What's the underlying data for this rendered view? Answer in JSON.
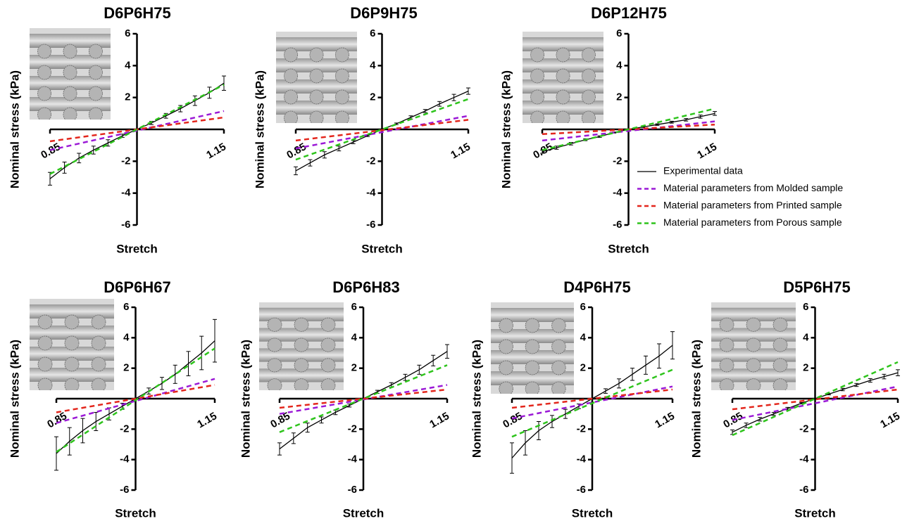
{
  "legend": [
    {
      "name": "Experimental data",
      "color": "#000000",
      "dashed": false
    },
    {
      "name": "Material parameters from Molded sample",
      "color": "#9b19d6",
      "dashed": true
    },
    {
      "name": "Material parameters from Printed sample",
      "color": "#e3261c",
      "dashed": true
    },
    {
      "name": "Material parameters from Porous sample",
      "color": "#2ec41c",
      "dashed": true
    }
  ],
  "chart_data": [
    {
      "type": "line",
      "title": "D6P6H75",
      "x_label": "Stretch",
      "y_label": "Nominal stress (kPa)",
      "xlim": [
        0.85,
        1.15
      ],
      "xticks": [
        0.85,
        1.15
      ],
      "ylim": [
        -6,
        6
      ],
      "yticks": [
        -6,
        -4,
        -2,
        2,
        4,
        6
      ],
      "series": [
        {
          "x": [
            0.85,
            0.875,
            0.9,
            0.925,
            0.95,
            0.975,
            1,
            1.025,
            1.05,
            1.075,
            1.1,
            1.125,
            1.15
          ],
          "values": [
            -3.1,
            -2.4,
            -1.8,
            -1.3,
            -0.85,
            -0.4,
            0,
            0.4,
            0.85,
            1.3,
            1.8,
            2.3,
            2.9
          ],
          "errors": [
            0.4,
            0.35,
            0.3,
            0.25,
            0.2,
            0.1,
            0,
            0.1,
            0.15,
            0.2,
            0.3,
            0.35,
            0.45
          ]
        },
        {
          "x": [
            0.85,
            1.15
          ],
          "values": [
            -1.3,
            1.15
          ]
        },
        {
          "x": [
            0.85,
            1.15
          ],
          "values": [
            -0.75,
            0.75
          ]
        },
        {
          "x": [
            0.85,
            1.15
          ],
          "values": [
            -2.8,
            2.8
          ]
        }
      ]
    },
    {
      "type": "line",
      "title": "D6P9H75",
      "x_label": "Stretch",
      "y_label": "Nominal stress (kPa)",
      "xlim": [
        0.85,
        1.15
      ],
      "xticks": [
        0.85,
        1.15
      ],
      "ylim": [
        -6,
        6
      ],
      "yticks": [
        -6,
        -4,
        -2,
        2,
        4,
        6
      ],
      "series": [
        {
          "x": [
            0.85,
            0.875,
            0.9,
            0.925,
            0.95,
            0.975,
            1,
            1.025,
            1.05,
            1.075,
            1.1,
            1.125,
            1.15
          ],
          "values": [
            -2.6,
            -2.1,
            -1.6,
            -1.2,
            -0.8,
            -0.4,
            0,
            0.35,
            0.75,
            1.15,
            1.6,
            2.0,
            2.4
          ],
          "errors": [
            0.25,
            0.2,
            0.2,
            0.15,
            0.1,
            0.05,
            0,
            0.05,
            0.1,
            0.1,
            0.15,
            0.2,
            0.2
          ]
        },
        {
          "x": [
            0.85,
            1.15
          ],
          "values": [
            -1.2,
            0.85
          ]
        },
        {
          "x": [
            0.85,
            1.15
          ],
          "values": [
            -0.7,
            0.6
          ]
        },
        {
          "x": [
            0.85,
            1.15
          ],
          "values": [
            -1.9,
            1.9
          ]
        }
      ]
    },
    {
      "type": "line",
      "title": "D6P12H75",
      "x_label": "Stretch",
      "y_label": "Nominal stress (kPa)",
      "xlim": [
        0.85,
        1.15
      ],
      "xticks": [
        0.85,
        1.15
      ],
      "ylim": [
        -6,
        6
      ],
      "yticks": [
        -6,
        -4,
        -2,
        2,
        4,
        6
      ],
      "series": [
        {
          "x": [
            0.85,
            0.875,
            0.9,
            0.925,
            0.95,
            0.975,
            1,
            1.025,
            1.05,
            1.075,
            1.1,
            1.125,
            1.15
          ],
          "values": [
            -1.4,
            -1.15,
            -0.9,
            -0.65,
            -0.45,
            -0.2,
            0,
            0.15,
            0.3,
            0.45,
            0.6,
            0.8,
            1.0
          ],
          "errors": [
            0.1,
            0.1,
            0.08,
            0.06,
            0.05,
            0.03,
            0,
            0.03,
            0.05,
            0.06,
            0.08,
            0.1,
            0.12
          ]
        },
        {
          "x": [
            0.85,
            1.15
          ],
          "values": [
            -0.7,
            0.5
          ]
        },
        {
          "x": [
            0.85,
            1.15
          ],
          "values": [
            -0.3,
            0.3
          ]
        },
        {
          "x": [
            0.85,
            1.15
          ],
          "values": [
            -1.3,
            1.3
          ]
        }
      ]
    },
    {
      "type": "line",
      "title": "D6P6H67",
      "x_label": "Stretch",
      "y_label": "Nominal stress (kPa)",
      "xlim": [
        0.85,
        1.15
      ],
      "xticks": [
        0.85,
        1.15
      ],
      "ylim": [
        -6,
        6
      ],
      "yticks": [
        -6,
        -4,
        -2,
        2,
        4,
        6
      ],
      "series": [
        {
          "x": [
            0.85,
            0.875,
            0.9,
            0.925,
            0.95,
            0.975,
            1,
            1.025,
            1.05,
            1.075,
            1.1,
            1.125,
            1.15
          ],
          "values": [
            -3.6,
            -2.8,
            -2.1,
            -1.5,
            -1.0,
            -0.5,
            0,
            0.5,
            1.0,
            1.6,
            2.3,
            3.0,
            3.8
          ],
          "errors": [
            1.1,
            0.9,
            0.8,
            0.6,
            0.4,
            0.2,
            0,
            0.2,
            0.4,
            0.6,
            0.8,
            1.1,
            1.4
          ]
        },
        {
          "x": [
            0.85,
            1.15
          ],
          "values": [
            -1.6,
            1.3
          ]
        },
        {
          "x": [
            0.85,
            1.15
          ],
          "values": [
            -0.9,
            0.9
          ]
        },
        {
          "x": [
            0.85,
            1.15
          ],
          "values": [
            -3.5,
            3.3
          ]
        }
      ]
    },
    {
      "type": "line",
      "title": "D6P6H83",
      "x_label": "Stretch",
      "y_label": "Nominal stress (kPa)",
      "xlim": [
        0.85,
        1.15
      ],
      "xticks": [
        0.85,
        1.15
      ],
      "ylim": [
        -6,
        6
      ],
      "yticks": [
        -6,
        -4,
        -2,
        2,
        4,
        6
      ],
      "series": [
        {
          "x": [
            0.85,
            0.875,
            0.9,
            0.925,
            0.95,
            0.975,
            1,
            1.025,
            1.05,
            1.075,
            1.1,
            1.125,
            1.15
          ],
          "values": [
            -3.3,
            -2.6,
            -1.9,
            -1.4,
            -0.9,
            -0.45,
            0,
            0.45,
            0.9,
            1.4,
            1.9,
            2.5,
            3.1
          ],
          "errors": [
            0.4,
            0.35,
            0.3,
            0.2,
            0.15,
            0.1,
            0,
            0.1,
            0.15,
            0.2,
            0.3,
            0.35,
            0.45
          ]
        },
        {
          "x": [
            0.85,
            1.15
          ],
          "values": [
            -1.0,
            0.9
          ]
        },
        {
          "x": [
            0.85,
            1.15
          ],
          "values": [
            -0.6,
            0.6
          ]
        },
        {
          "x": [
            0.85,
            1.15
          ],
          "values": [
            -2.2,
            2.2
          ]
        }
      ]
    },
    {
      "type": "line",
      "title": "D4P6H75",
      "x_label": "Stretch",
      "y_label": "Nominal stress (kPa)",
      "xlim": [
        0.85,
        1.15
      ],
      "xticks": [
        0.85,
        1.15
      ],
      "ylim": [
        -6,
        6
      ],
      "yticks": [
        -6,
        -4,
        -2,
        2,
        4,
        6
      ],
      "series": [
        {
          "x": [
            0.85,
            0.875,
            0.9,
            0.925,
            0.95,
            0.975,
            1,
            1.025,
            1.05,
            1.075,
            1.1,
            1.125,
            1.15
          ],
          "values": [
            -3.9,
            -2.9,
            -2.1,
            -1.5,
            -1.0,
            -0.5,
            0,
            0.5,
            1.0,
            1.6,
            2.2,
            2.8,
            3.5
          ],
          "errors": [
            1.0,
            0.8,
            0.6,
            0.4,
            0.3,
            0.15,
            0,
            0.15,
            0.3,
            0.4,
            0.6,
            0.8,
            0.9
          ]
        },
        {
          "x": [
            0.85,
            1.15
          ],
          "values": [
            -1.3,
            0.8
          ]
        },
        {
          "x": [
            0.85,
            1.15
          ],
          "values": [
            -0.6,
            0.6
          ]
        },
        {
          "x": [
            0.85,
            1.15
          ],
          "values": [
            -2.5,
            1.9
          ]
        }
      ]
    },
    {
      "type": "line",
      "title": "D5P6H75",
      "x_label": "Stretch",
      "y_label": "Nominal stress (kPa)",
      "xlim": [
        0.85,
        1.15
      ],
      "xticks": [
        0.85,
        1.15
      ],
      "ylim": [
        -6,
        6
      ],
      "yticks": [
        -6,
        -4,
        -2,
        2,
        4,
        6
      ],
      "series": [
        {
          "x": [
            0.85,
            0.875,
            0.9,
            0.925,
            0.95,
            0.975,
            1,
            1.025,
            1.05,
            1.075,
            1.1,
            1.125,
            1.15
          ],
          "values": [
            -2.2,
            -1.75,
            -1.35,
            -1.0,
            -0.65,
            -0.3,
            0,
            0.3,
            0.6,
            0.9,
            1.2,
            1.45,
            1.7
          ],
          "errors": [
            0.15,
            0.15,
            0.12,
            0.1,
            0.08,
            0.05,
            0,
            0.05,
            0.08,
            0.1,
            0.12,
            0.15,
            0.2
          ]
        },
        {
          "x": [
            0.85,
            1.15
          ],
          "values": [
            -1.4,
            0.8
          ]
        },
        {
          "x": [
            0.85,
            1.15
          ],
          "values": [
            -0.7,
            0.6
          ]
        },
        {
          "x": [
            0.85,
            1.15
          ],
          "values": [
            -2.4,
            2.4
          ]
        }
      ]
    }
  ]
}
